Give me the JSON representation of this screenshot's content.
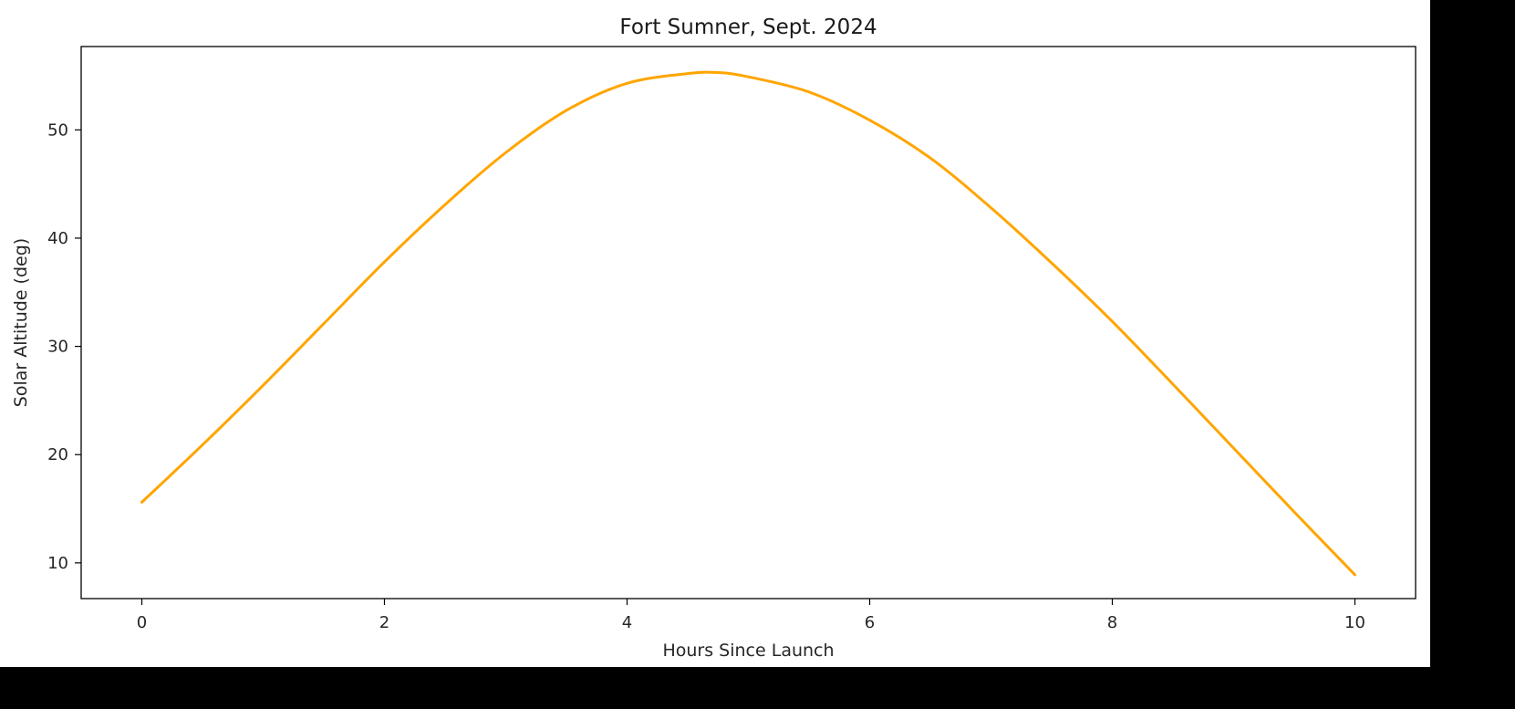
{
  "chart_data": {
    "type": "line",
    "title": "Fort Sumner, Sept. 2024",
    "xlabel": "Hours Since Launch",
    "ylabel": "Solar Altitude (deg)",
    "xlim": [
      -0.5,
      10.5
    ],
    "ylim": [
      6.7,
      57.7
    ],
    "xticks": [
      0,
      2,
      4,
      6,
      8,
      10
    ],
    "yticks": [
      10,
      20,
      30,
      40,
      50
    ],
    "grid": false,
    "series": [
      {
        "color": "#ffa500",
        "x": [
          0,
          0.5,
          1,
          1.5,
          2,
          2.5,
          3,
          3.5,
          4,
          4.5,
          4.75,
          5,
          5.5,
          6,
          6.5,
          7,
          7.5,
          8,
          8.5,
          9,
          9.5,
          10
        ],
        "y": [
          15.6,
          20.9,
          26.4,
          32.1,
          37.8,
          43.1,
          47.9,
          51.8,
          54.3,
          55.2,
          55.3,
          54.9,
          53.5,
          50.9,
          47.4,
          42.8,
          37.7,
          32.3,
          26.5,
          20.6,
          14.7,
          8.9
        ]
      }
    ]
  }
}
